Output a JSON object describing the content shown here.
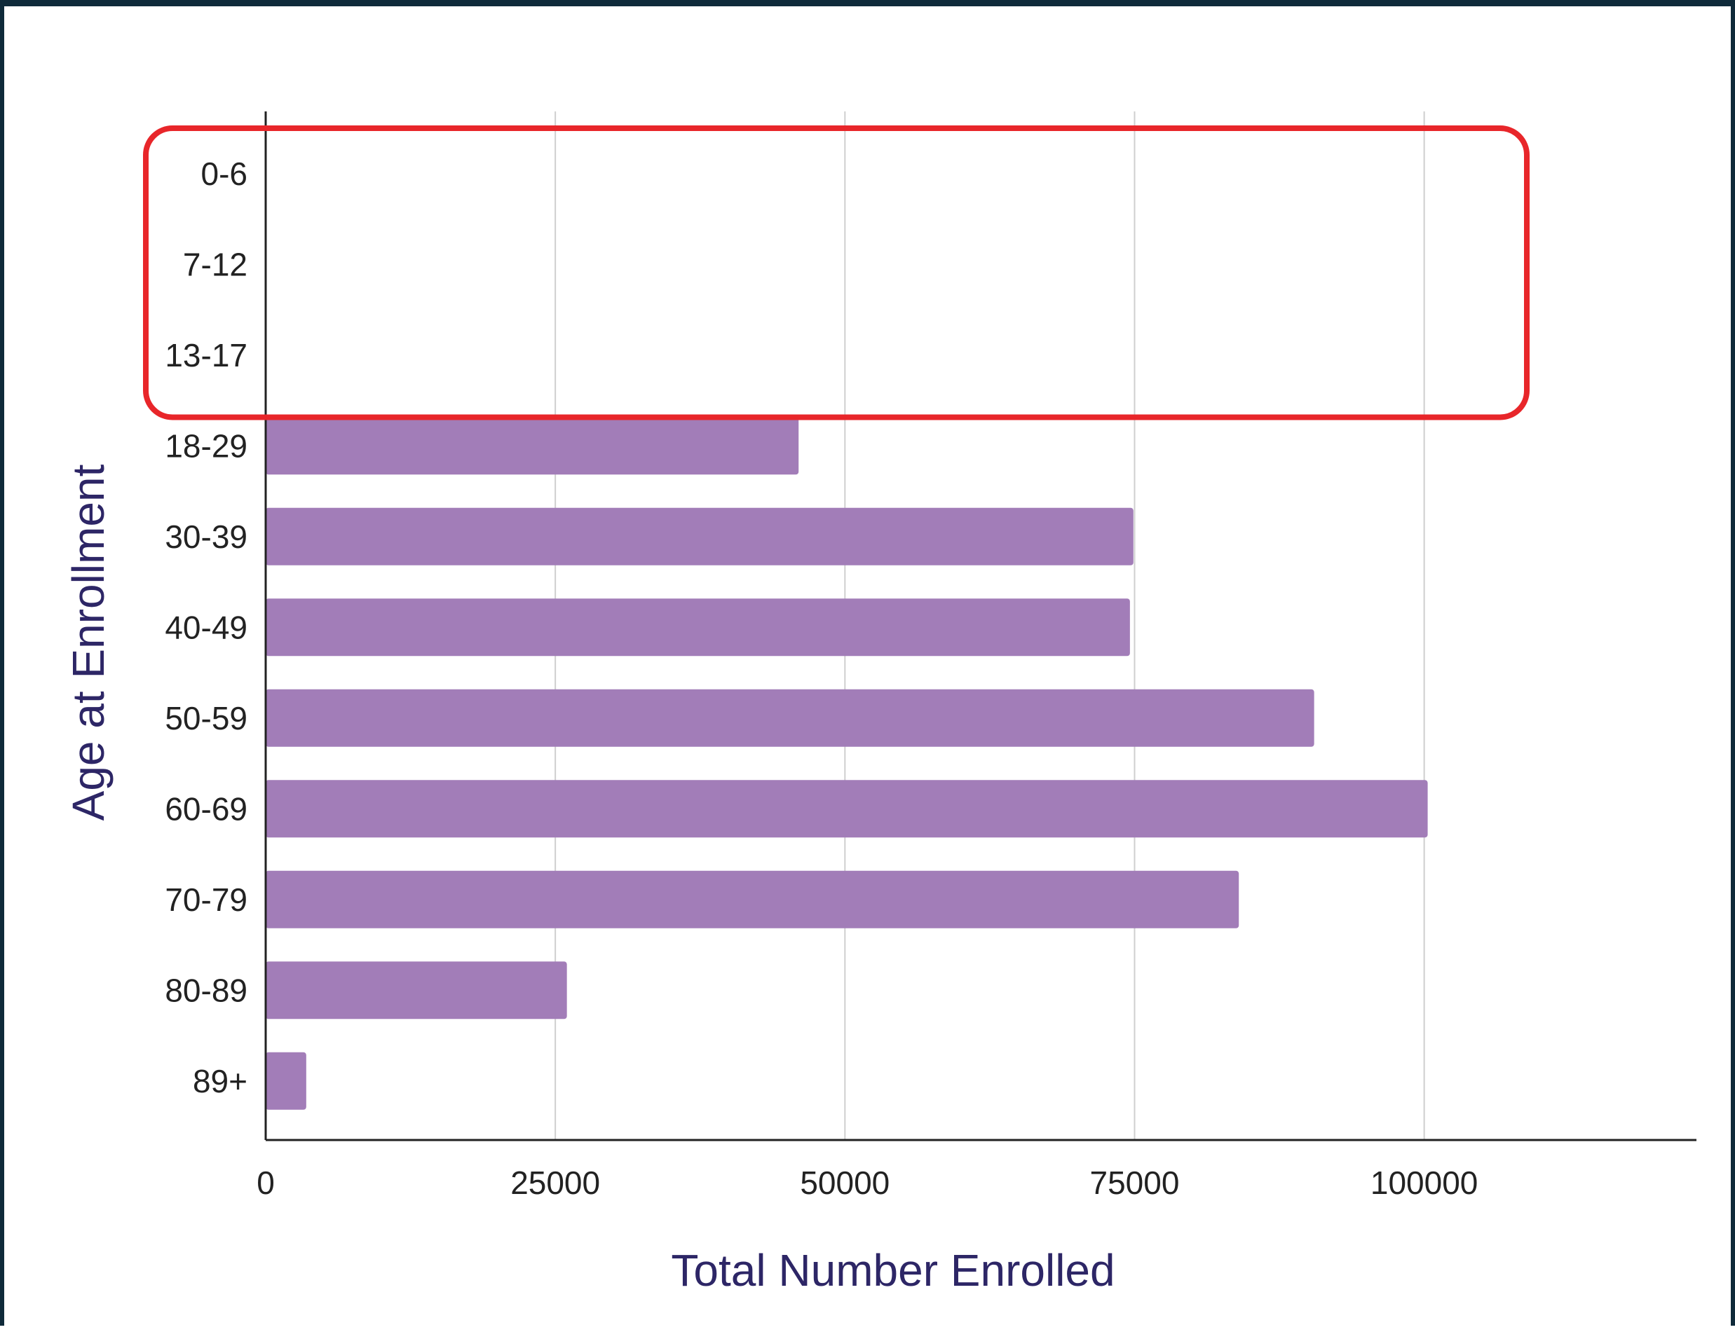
{
  "chart_data": {
    "type": "bar",
    "orientation": "horizontal",
    "categories": [
      "0-6",
      "7-12",
      "13-17",
      "18-29",
      "30-39",
      "40-49",
      "50-59",
      "60-69",
      "70-79",
      "80-89",
      "89+"
    ],
    "values": [
      0,
      0,
      0,
      46000,
      74900,
      74600,
      90500,
      100300,
      84000,
      26000,
      3500
    ],
    "xlabel": "Total Number Enrolled",
    "ylabel": "Age at Enrollment",
    "xlim": [
      0,
      123500
    ],
    "x_ticks": [
      0,
      25000,
      50000,
      75000,
      100000
    ],
    "grid": "vertical",
    "bar_color": "#a27db8",
    "highlight": {
      "categories": [
        "0-6",
        "7-12",
        "13-17"
      ],
      "color": "#e8262a"
    }
  }
}
